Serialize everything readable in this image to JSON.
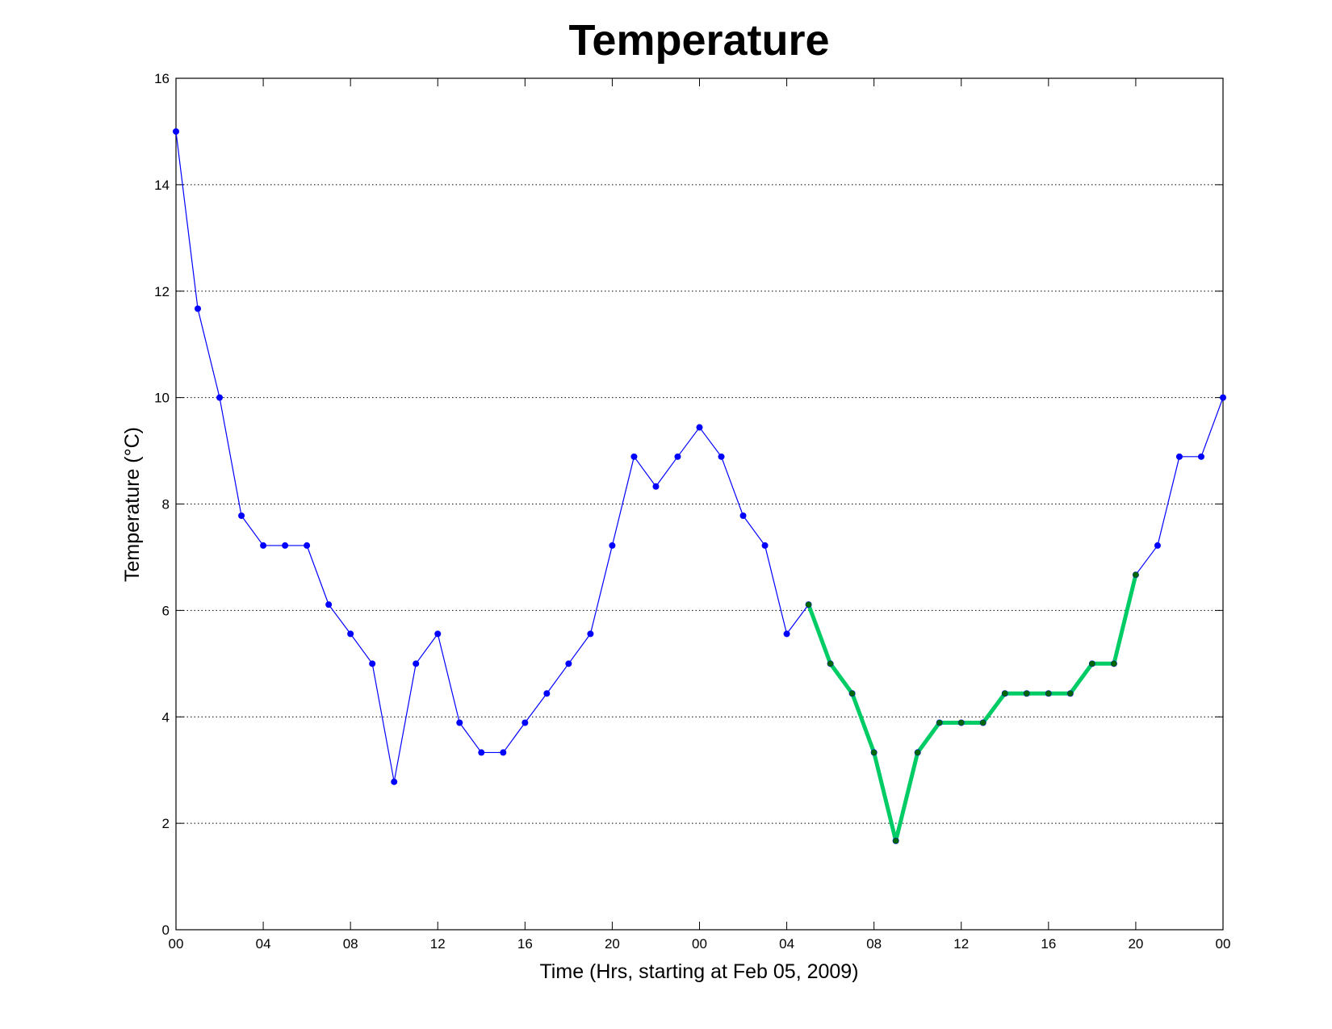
{
  "chart_data": {
    "type": "line",
    "title": "Temperature",
    "xlabel": "Time (Hrs, starting at Feb 05, 2009)",
    "ylabel": "Temperature (°C)",
    "xlim": [
      0,
      48
    ],
    "ylim": [
      0,
      16
    ],
    "grid": "horizontal dotted",
    "x_ticks": [
      {
        "x": 0,
        "label": "00"
      },
      {
        "x": 4,
        "label": "04"
      },
      {
        "x": 8,
        "label": "08"
      },
      {
        "x": 12,
        "label": "12"
      },
      {
        "x": 16,
        "label": "16"
      },
      {
        "x": 20,
        "label": "20"
      },
      {
        "x": 24,
        "label": "00"
      },
      {
        "x": 28,
        "label": "04"
      },
      {
        "x": 32,
        "label": "08"
      },
      {
        "x": 36,
        "label": "12"
      },
      {
        "x": 40,
        "label": "16"
      },
      {
        "x": 44,
        "label": "20"
      },
      {
        "x": 48,
        "label": "00"
      }
    ],
    "y_ticks": [
      0,
      2,
      4,
      6,
      8,
      10,
      12,
      14,
      16
    ],
    "series": [
      {
        "color": "#0000ff",
        "x": [
          0,
          1,
          2,
          3,
          4,
          5,
          6,
          7,
          8,
          9,
          10,
          11,
          12,
          13,
          14,
          15,
          16,
          17,
          18,
          19,
          20,
          21,
          22,
          23,
          24,
          25,
          26,
          27,
          28,
          29,
          30,
          31,
          32,
          33,
          34,
          35,
          36,
          37,
          38,
          39,
          40,
          41,
          42,
          43,
          44,
          45,
          46,
          47,
          48
        ],
        "values": [
          15.0,
          11.67,
          10.0,
          7.78,
          7.22,
          7.22,
          7.22,
          6.11,
          5.56,
          5.0,
          2.78,
          5.0,
          5.56,
          3.89,
          3.33,
          3.33,
          3.89,
          4.44,
          5.0,
          5.56,
          7.22,
          8.89,
          8.33,
          8.89,
          9.44,
          8.89,
          7.78,
          7.22,
          5.56,
          6.11,
          5.0,
          4.44,
          3.33,
          1.67,
          3.33,
          3.89,
          3.89,
          3.89,
          4.44,
          4.44,
          4.44,
          4.44,
          5.0,
          5.0,
          6.67,
          7.22,
          8.89,
          8.89,
          10.0
        ]
      },
      {
        "color": "#00cc66",
        "x": [
          29,
          30,
          31,
          32,
          33,
          34,
          35,
          36,
          37,
          38,
          39,
          40,
          41,
          42,
          43,
          44
        ],
        "values": [
          6.11,
          5.0,
          4.44,
          3.33,
          1.67,
          3.33,
          3.89,
          3.89,
          3.89,
          4.44,
          4.44,
          4.44,
          4.44,
          5.0,
          5.0,
          6.67
        ]
      }
    ]
  }
}
